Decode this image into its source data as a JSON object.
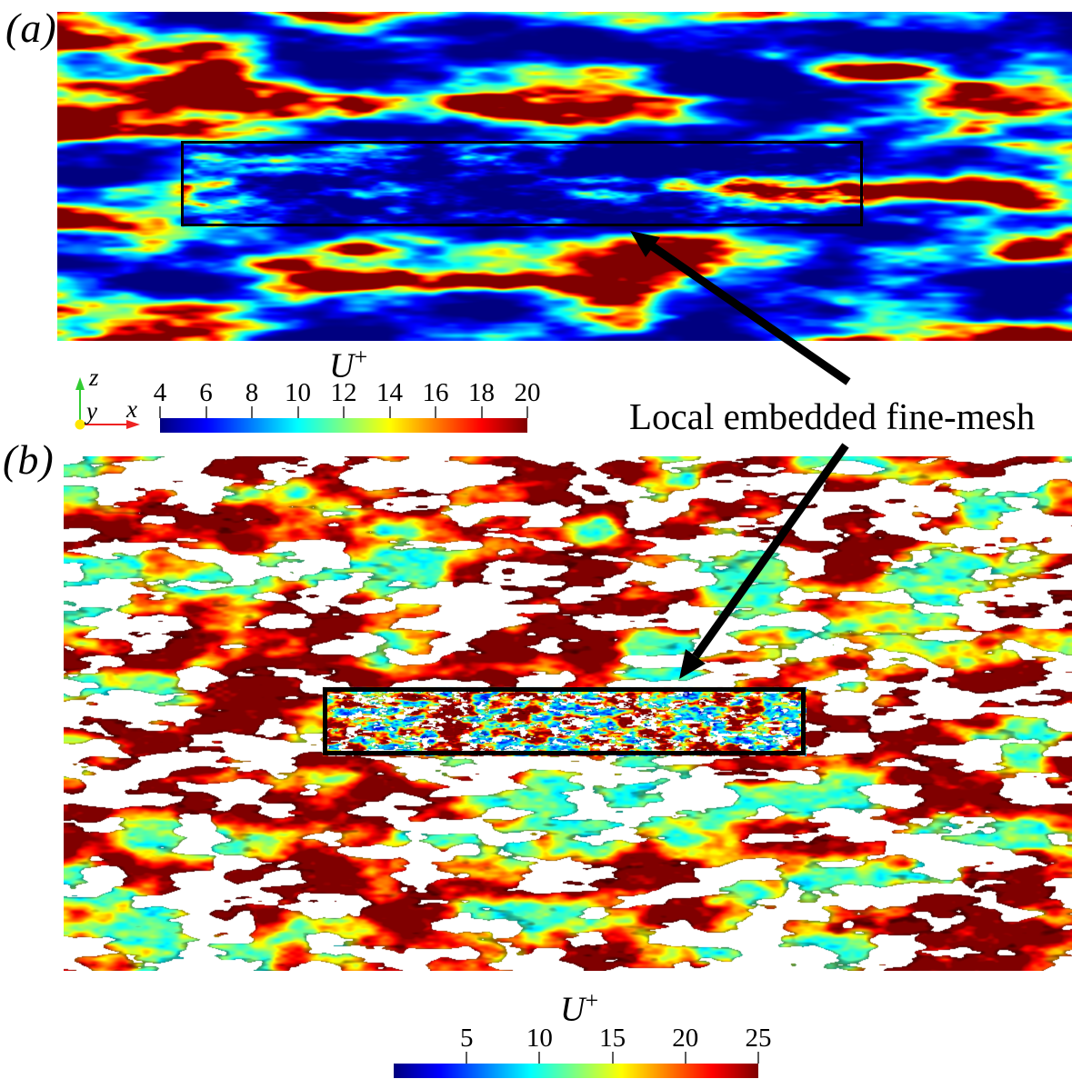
{
  "panels": {
    "a": {
      "label": "(a)",
      "colorbar": {
        "title": "U",
        "title_superscript": "+",
        "ticks": [
          4,
          6,
          8,
          10,
          12,
          14,
          16,
          18,
          20
        ],
        "min": 4,
        "max": 20
      }
    },
    "b": {
      "label": "(b)",
      "colorbar": {
        "title": "U",
        "title_superscript": "+",
        "ticks": [
          5,
          10,
          15,
          20,
          25
        ],
        "min": 0,
        "max": 25
      }
    }
  },
  "annotation": {
    "text": "Local embedded fine-mesh"
  },
  "axes_triad": {
    "x_label": "x",
    "y_label": "y",
    "z_label": "z"
  },
  "colors": {
    "colormap": "jet",
    "x_axis": "#ee2222",
    "z_axis": "#33cc33",
    "origin_dot": "#ffe600",
    "outline": "#000000",
    "ink": "#000000"
  }
}
